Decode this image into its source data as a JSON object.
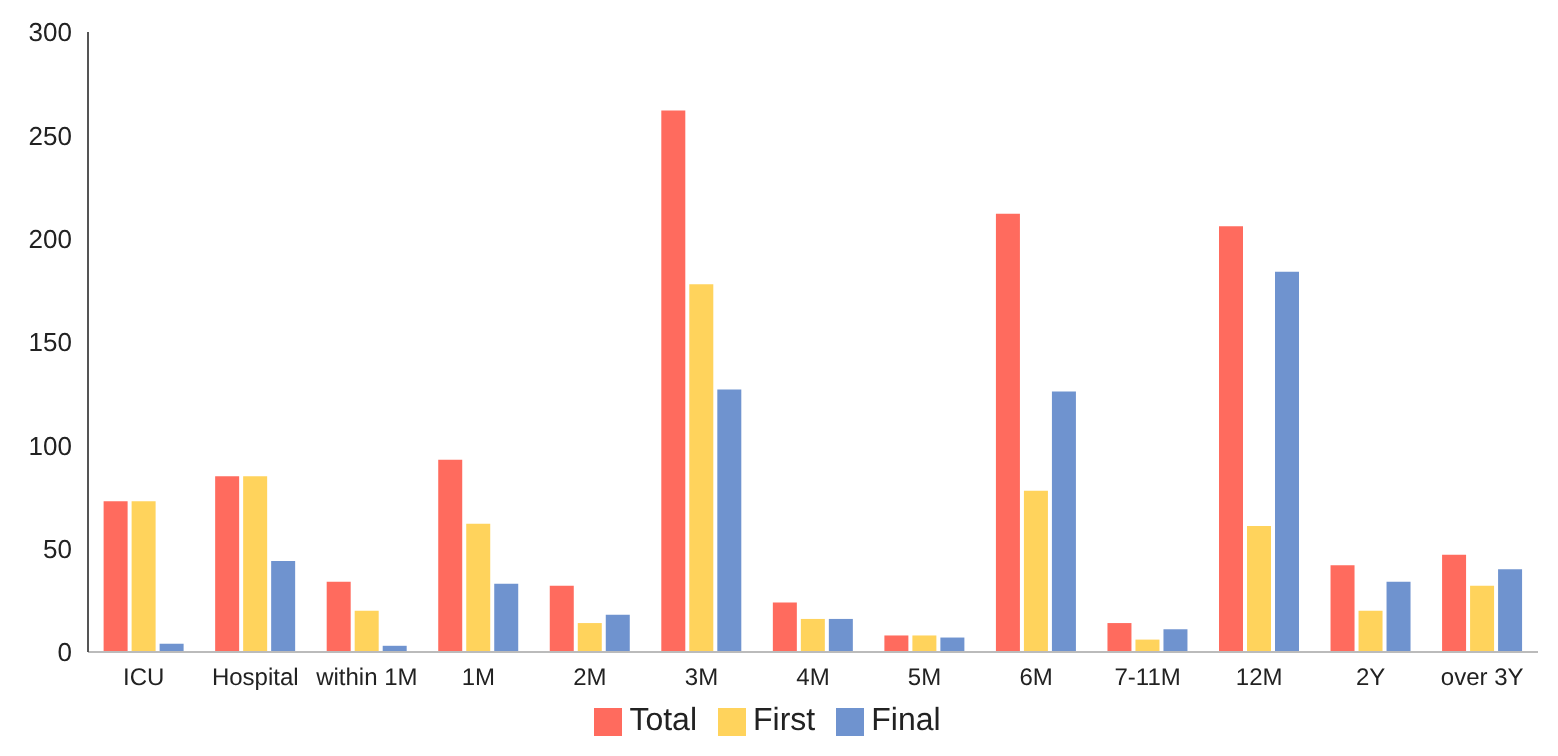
{
  "chart_data": {
    "type": "bar",
    "categories": [
      "ICU",
      "Hospital",
      "within 1M",
      "1M",
      "2M",
      "3M",
      "4M",
      "5M",
      "6M",
      "7-11M",
      "12M",
      "2Y",
      "over 3Y"
    ],
    "series": [
      {
        "name": "Total",
        "color": "#ff6b5e",
        "values": [
          73,
          85,
          34,
          93,
          32,
          262,
          24,
          8,
          212,
          14,
          206,
          42,
          47
        ]
      },
      {
        "name": "First",
        "color": "#ffd35c",
        "values": [
          73,
          85,
          20,
          62,
          14,
          178,
          16,
          8,
          78,
          6,
          61,
          20,
          32
        ]
      },
      {
        "name": "Final",
        "color": "#6f93cf",
        "values": [
          4,
          44,
          3,
          33,
          18,
          127,
          16,
          7,
          126,
          11,
          184,
          34,
          40
        ]
      }
    ],
    "ylim": [
      0,
      300
    ],
    "yticks": [
      0,
      50,
      100,
      150,
      200,
      250,
      300
    ],
    "grid": false,
    "legend": "bottom"
  }
}
